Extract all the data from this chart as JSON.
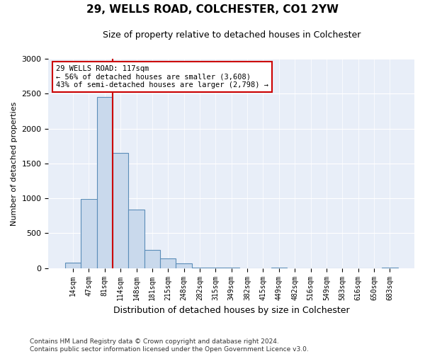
{
  "title": "29, WELLS ROAD, COLCHESTER, CO1 2YW",
  "subtitle": "Size of property relative to detached houses in Colchester",
  "xlabel": "Distribution of detached houses by size in Colchester",
  "ylabel": "Number of detached properties",
  "categories": [
    "14sqm",
    "47sqm",
    "81sqm",
    "114sqm",
    "148sqm",
    "181sqm",
    "215sqm",
    "248sqm",
    "282sqm",
    "315sqm",
    "349sqm",
    "382sqm",
    "415sqm",
    "449sqm",
    "482sqm",
    "516sqm",
    "549sqm",
    "583sqm",
    "616sqm",
    "650sqm",
    "683sqm"
  ],
  "values": [
    75,
    990,
    2450,
    1650,
    840,
    265,
    140,
    65,
    10,
    5,
    5,
    0,
    0,
    5,
    0,
    0,
    0,
    0,
    0,
    0,
    5
  ],
  "bar_color": "#c9d9ec",
  "bar_edgecolor": "#5b8db8",
  "vline_color": "#cc0000",
  "annotation_text": "29 WELLS ROAD: 117sqm\n← 56% of detached houses are smaller (3,608)\n43% of semi-detached houses are larger (2,798) →",
  "annotation_box_color": "#ffffff",
  "annotation_box_edgecolor": "#cc0000",
  "ylim": [
    0,
    3000
  ],
  "yticks": [
    0,
    500,
    1000,
    1500,
    2000,
    2500,
    3000
  ],
  "footer": "Contains HM Land Registry data © Crown copyright and database right 2024.\nContains public sector information licensed under the Open Government Licence v3.0.",
  "background_color": "#ffffff",
  "plot_background": "#e8eef8"
}
